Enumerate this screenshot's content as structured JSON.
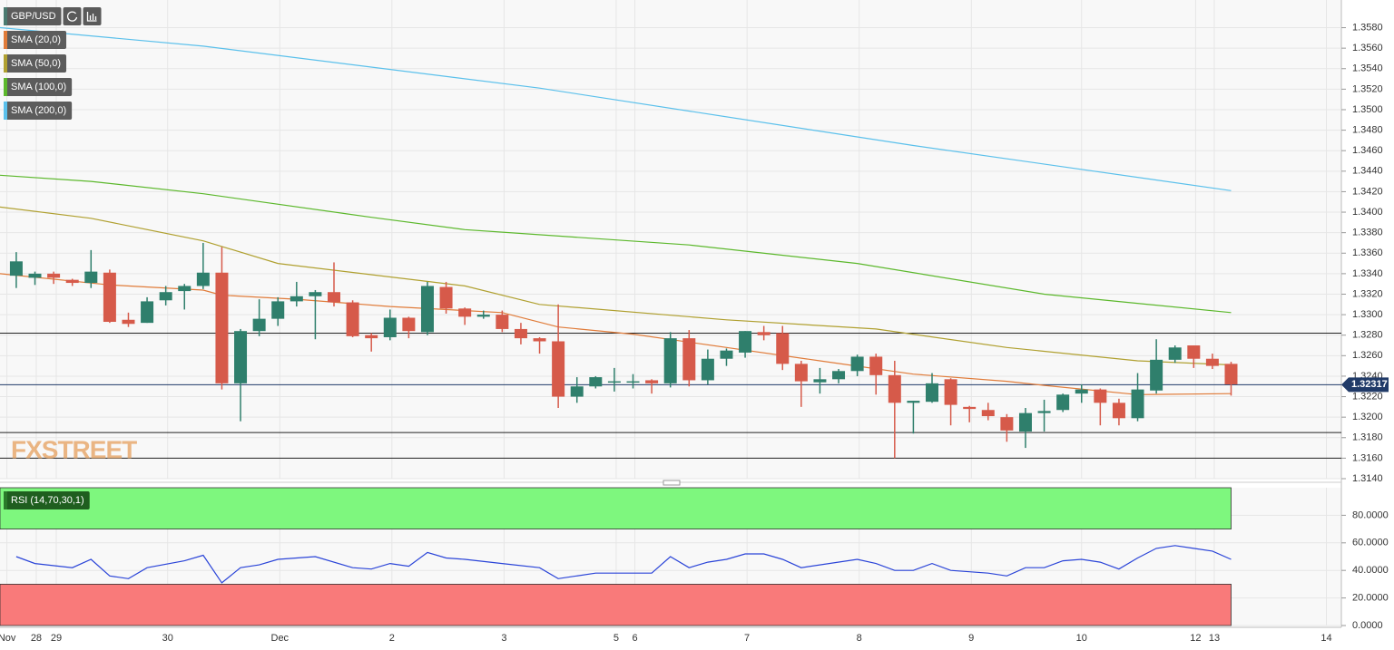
{
  "chart_data": [
    {
      "type": "candlestick",
      "watermark": "FXSTREET",
      "xlim": [
        -0.87,
        70.9
      ],
      "ylim": [
        1.314,
        1.3607
      ],
      "yticks": [
        {
          "value": 1.358,
          "label": "1.3580"
        },
        {
          "value": 1.356,
          "label": "1.3560"
        },
        {
          "value": 1.354,
          "label": "1.3540"
        },
        {
          "value": 1.352,
          "label": "1.3520"
        },
        {
          "value": 1.35,
          "label": "1.3500"
        },
        {
          "value": 1.348,
          "label": "1.3480"
        },
        {
          "value": 1.346,
          "label": "1.3460"
        },
        {
          "value": 1.344,
          "label": "1.3440"
        },
        {
          "value": 1.342,
          "label": "1.3420"
        },
        {
          "value": 1.34,
          "label": "1.3400"
        },
        {
          "value": 1.338,
          "label": "1.3380"
        },
        {
          "value": 1.336,
          "label": "1.3360"
        },
        {
          "value": 1.334,
          "label": "1.3340"
        },
        {
          "value": 1.332,
          "label": "1.3320"
        },
        {
          "value": 1.33,
          "label": "1.3300"
        },
        {
          "value": 1.328,
          "label": "1.3280"
        },
        {
          "value": 1.326,
          "label": "1.3260"
        },
        {
          "value": 1.324,
          "label": "1.3240"
        },
        {
          "value": 1.322,
          "label": "1.3220"
        },
        {
          "value": 1.32,
          "label": "1.3200"
        },
        {
          "value": 1.318,
          "label": "1.3180"
        },
        {
          "value": 1.316,
          "label": "1.3160"
        },
        {
          "value": 1.314,
          "label": "1.3140"
        }
      ],
      "hlines": [
        1.3282,
        1.3185,
        1.316
      ],
      "last_price": 1.32317,
      "last_price_color": "#203a68",
      "series": [
        {
          "name": "GBP/USD",
          "type": "candlestick",
          "color": "#4b7a70",
          "up_color": "#2f7f6c",
          "down_color": "#d65a4a",
          "open": [
            1.3338,
            1.3336,
            1.334,
            1.3334,
            1.3331,
            1.3341,
            1.3295,
            1.3292,
            1.3314,
            1.3323,
            1.3328,
            1.3341,
            1.3233,
            1.3284,
            1.3296,
            1.3313,
            1.3318,
            1.3322,
            1.3312,
            1.328,
            1.3278,
            1.3297,
            1.3283,
            1.3327,
            1.3306,
            1.3298,
            1.33,
            1.3286,
            1.3277,
            1.3274,
            1.322,
            1.323,
            1.3234,
            1.3234,
            1.3236,
            1.3233,
            1.3277,
            1.3236,
            1.3257,
            1.3263,
            1.3283,
            1.3282,
            1.3252,
            1.3234,
            1.3237,
            1.3245,
            1.3259,
            1.3241,
            1.3214,
            1.3215,
            1.3237,
            1.321,
            1.3207,
            1.32,
            1.3186,
            1.3204,
            1.3207,
            1.3223,
            1.3227,
            1.3214,
            1.3199,
            1.3226,
            1.3256,
            1.327,
            1.3257,
            1.3252
          ],
          "high": [
            1.3361,
            1.3342,
            1.3342,
            1.3335,
            1.3363,
            1.3344,
            1.3302,
            1.3317,
            1.3328,
            1.333,
            1.337,
            1.3366,
            1.3286,
            1.3315,
            1.3317,
            1.3332,
            1.3324,
            1.3351,
            1.3314,
            1.3282,
            1.3305,
            1.3298,
            1.3332,
            1.3332,
            1.3307,
            1.3304,
            1.3304,
            1.3292,
            1.3278,
            1.331,
            1.3239,
            1.324,
            1.3248,
            1.3242,
            1.3237,
            1.3283,
            1.3285,
            1.3266,
            1.3267,
            1.3284,
            1.3289,
            1.3289,
            1.3255,
            1.3248,
            1.3247,
            1.3261,
            1.3262,
            1.3255,
            1.3216,
            1.3243,
            1.3238,
            1.3211,
            1.3214,
            1.3203,
            1.3209,
            1.3217,
            1.3223,
            1.3232,
            1.3228,
            1.3218,
            1.3243,
            1.3276,
            1.327,
            1.327,
            1.3262,
            1.3254
          ],
          "low": [
            1.3326,
            1.3329,
            1.333,
            1.3328,
            1.3326,
            1.3292,
            1.3288,
            1.3292,
            1.3309,
            1.3305,
            1.3325,
            1.3227,
            1.3196,
            1.3279,
            1.3289,
            1.3308,
            1.3276,
            1.3308,
            1.3278,
            1.3264,
            1.3275,
            1.3277,
            1.328,
            1.3301,
            1.329,
            1.3296,
            1.3283,
            1.3271,
            1.3262,
            1.3209,
            1.3214,
            1.3228,
            1.3225,
            1.3228,
            1.3223,
            1.3229,
            1.323,
            1.3232,
            1.325,
            1.3258,
            1.3275,
            1.3246,
            1.321,
            1.3223,
            1.3233,
            1.324,
            1.3222,
            1.316,
            1.3184,
            1.3214,
            1.3192,
            1.3195,
            1.3197,
            1.3176,
            1.317,
            1.3186,
            1.3205,
            1.3214,
            1.3192,
            1.3192,
            1.3196,
            1.3223,
            1.3253,
            1.3248,
            1.3247,
            1.3221
          ],
          "close": [
            1.3352,
            1.334,
            1.3336,
            1.3331,
            1.3342,
            1.3293,
            1.3291,
            1.3313,
            1.3322,
            1.3328,
            1.3341,
            1.3233,
            1.3284,
            1.3296,
            1.3313,
            1.3318,
            1.3322,
            1.3312,
            1.3279,
            1.3277,
            1.3297,
            1.3284,
            1.3328,
            1.3306,
            1.3298,
            1.33,
            1.3286,
            1.3277,
            1.3274,
            1.322,
            1.323,
            1.3239,
            1.3235,
            1.3235,
            1.3233,
            1.3277,
            1.3236,
            1.3257,
            1.3265,
            1.3284,
            1.328,
            1.3252,
            1.3235,
            1.3237,
            1.3245,
            1.3259,
            1.3241,
            1.3214,
            1.3216,
            1.3233,
            1.3212,
            1.3208,
            1.3201,
            1.3187,
            1.3204,
            1.3206,
            1.3222,
            1.3227,
            1.3214,
            1.3199,
            1.3227,
            1.3256,
            1.3268,
            1.3257,
            1.325,
            1.3232
          ]
        },
        {
          "name": "SMA (20,0)",
          "type": "line",
          "color": "#e07b39",
          "x": [
            -0.87,
            5,
            10,
            11,
            15,
            20,
            26,
            29,
            33,
            38,
            43,
            48,
            53,
            55,
            60,
            65
          ],
          "values": [
            1.334,
            1.3329,
            1.3324,
            1.3319,
            1.3315,
            1.3308,
            1.3302,
            1.3288,
            1.3281,
            1.3268,
            1.3255,
            1.3242,
            1.3235,
            1.3231,
            1.3222,
            1.3223
          ]
        },
        {
          "name": "SMA (50,0)",
          "type": "line",
          "color": "#b0a030",
          "x": [
            -0.87,
            4,
            10,
            14,
            19,
            24,
            28,
            38,
            46,
            53,
            60,
            65
          ],
          "values": [
            1.3405,
            1.3394,
            1.3372,
            1.335,
            1.3339,
            1.3328,
            1.331,
            1.3295,
            1.3286,
            1.3268,
            1.3255,
            1.3251
          ]
        },
        {
          "name": "SMA (100,0)",
          "type": "line",
          "color": "#5cb82c",
          "x": [
            -0.87,
            4,
            10,
            19,
            24,
            36,
            45,
            55,
            65
          ],
          "values": [
            1.3436,
            1.343,
            1.3418,
            1.3395,
            1.3383,
            1.3368,
            1.335,
            1.332,
            1.3302
          ]
        },
        {
          "name": "SMA (200,0)",
          "type": "line",
          "color": "#5bc0eb",
          "x": [
            -0.87,
            10,
            28,
            48,
            65
          ],
          "values": [
            1.358,
            1.3562,
            1.3521,
            1.3465,
            1.3421
          ]
        }
      ]
    },
    {
      "type": "line",
      "xlim": [
        -0.87,
        70.9
      ],
      "ylim": [
        0,
        100
      ],
      "yticks": [
        {
          "value": 80,
          "label": "80.0000"
        },
        {
          "value": 60,
          "label": "60.0000"
        },
        {
          "value": 40,
          "label": "40.0000"
        },
        {
          "value": 20,
          "label": "20.0000"
        },
        {
          "value": 0,
          "label": "0.0000"
        }
      ],
      "xticks": [
        {
          "value": -0.5,
          "label": "Nov"
        },
        {
          "value": 1.07,
          "label": "28"
        },
        {
          "value": 2.14,
          "label": "29"
        },
        {
          "value": 8.1,
          "label": "30"
        },
        {
          "value": 14.1,
          "label": "Dec"
        },
        {
          "value": 20.1,
          "label": "2"
        },
        {
          "value": 26.1,
          "label": "3"
        },
        {
          "value": 32.1,
          "label": "5"
        },
        {
          "value": 33.1,
          "label": "6"
        },
        {
          "value": 39.1,
          "label": "7"
        },
        {
          "value": 45.1,
          "label": "8"
        },
        {
          "value": 51.1,
          "label": "9"
        },
        {
          "value": 57,
          "label": "10"
        },
        {
          "value": 63.1,
          "label": "12"
        },
        {
          "value": 64.1,
          "label": "13"
        },
        {
          "value": 70.1,
          "label": "14"
        }
      ],
      "zones": [
        {
          "range": [
            70,
            100
          ],
          "color": "#7ef77e"
        },
        {
          "range": [
            0,
            30
          ],
          "color": "#f97a7a"
        }
      ],
      "zones_end": 65,
      "series": [
        {
          "name": "RSI (14,70,30,1)",
          "color": "#2a44d8",
          "x": [
            0,
            1,
            3,
            4,
            5,
            6,
            7,
            9,
            10,
            11,
            12,
            13,
            14,
            16,
            18,
            19,
            20,
            21,
            22,
            23,
            24,
            26,
            28,
            29,
            31,
            34,
            35,
            36,
            37,
            38,
            39,
            40,
            41,
            42,
            45,
            46,
            47,
            48,
            49,
            50,
            52,
            53,
            54,
            55,
            56,
            57,
            58,
            59,
            60,
            61,
            62,
            63,
            64,
            65
          ],
          "values": [
            50,
            45,
            42,
            48,
            36,
            34,
            42,
            47,
            51,
            31,
            42,
            44,
            48,
            50,
            42,
            41,
            45,
            43,
            53,
            49,
            48,
            45,
            42,
            34,
            38,
            38,
            50,
            42,
            46,
            48,
            52,
            52,
            48,
            42,
            48,
            45,
            40,
            40,
            45,
            40,
            38,
            36,
            42,
            42,
            47,
            48,
            46,
            41,
            49,
            56,
            58,
            56,
            54,
            48
          ]
        }
      ]
    }
  ]
}
